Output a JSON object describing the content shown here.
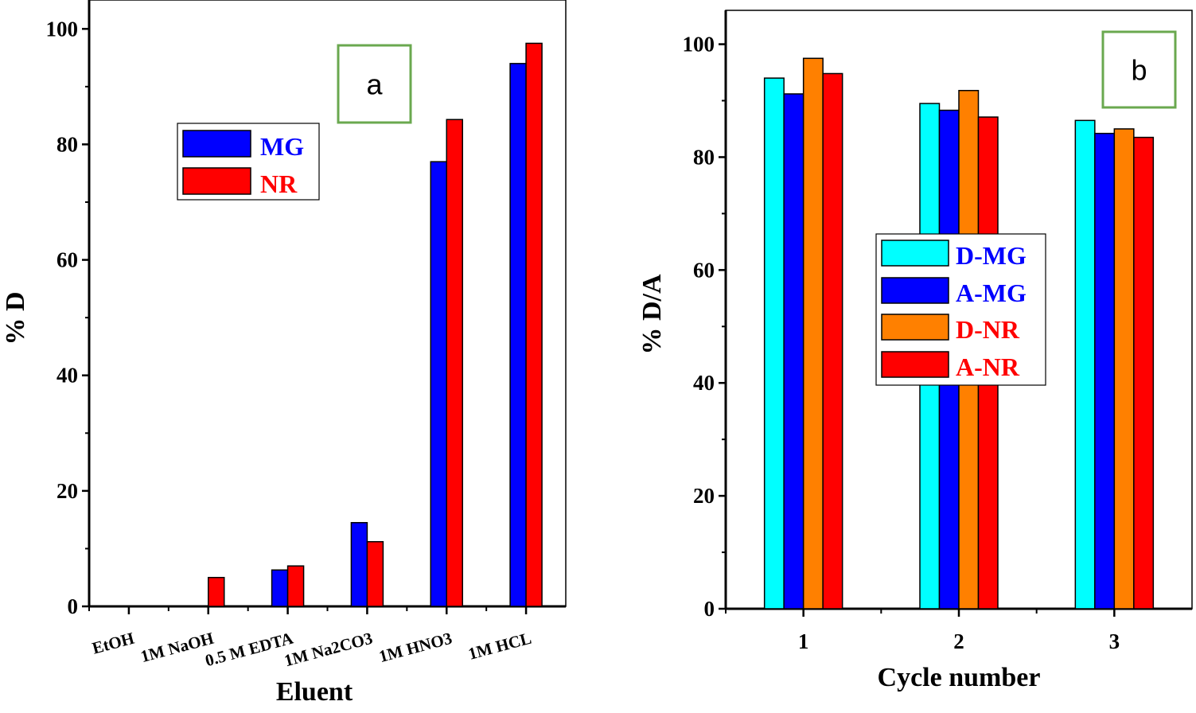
{
  "chart_data": [
    {
      "panel": "a",
      "type": "bar",
      "title": "",
      "xlabel": "Eluent",
      "ylabel": "% D",
      "ylim": [
        0,
        105
      ],
      "yticks": [
        0,
        20,
        40,
        60,
        80,
        100
      ],
      "categories": [
        "EtOH",
        "1M NaOH",
        "0.5 M EDTA",
        "1M Na2CO3",
        "1M HNO3",
        "1M HCL"
      ],
      "series": [
        {
          "name": "MG",
          "color": "#0000ff",
          "text_color": "#0000ff",
          "values": [
            0,
            0,
            6.3,
            14.5,
            77,
            94
          ]
        },
        {
          "name": "NR",
          "color": "#ff0000",
          "text_color": "#ff0000",
          "values": [
            0,
            5,
            7,
            11.2,
            84.3,
            97.5
          ]
        }
      ],
      "legend_position": "upper-left-center",
      "panel_tag": "a",
      "panel_tag_border": "#6aa84f"
    },
    {
      "panel": "b",
      "type": "bar",
      "title": "",
      "xlabel": "Cycle number",
      "ylabel": "% D/A",
      "ylim": [
        0,
        106
      ],
      "yticks": [
        0,
        20,
        40,
        60,
        80,
        100
      ],
      "categories": [
        "1",
        "2",
        "3"
      ],
      "series": [
        {
          "name": "D-MG",
          "color": "#00ffff",
          "text_color": "#0000ff",
          "values": [
            94,
            89.5,
            86.5
          ]
        },
        {
          "name": "A-MG",
          "color": "#0000ff",
          "text_color": "#0000ff",
          "values": [
            91.2,
            88.3,
            84.2
          ]
        },
        {
          "name": "D-NR",
          "color": "#ff8000",
          "text_color": "#ff0000",
          "values": [
            97.5,
            91.8,
            85
          ]
        },
        {
          "name": "A-NR",
          "color": "#ff0000",
          "text_color": "#ff0000",
          "values": [
            94.8,
            87.1,
            83.5
          ]
        }
      ],
      "legend_position": "center",
      "panel_tag": "b",
      "panel_tag_border": "#6aa84f"
    }
  ]
}
